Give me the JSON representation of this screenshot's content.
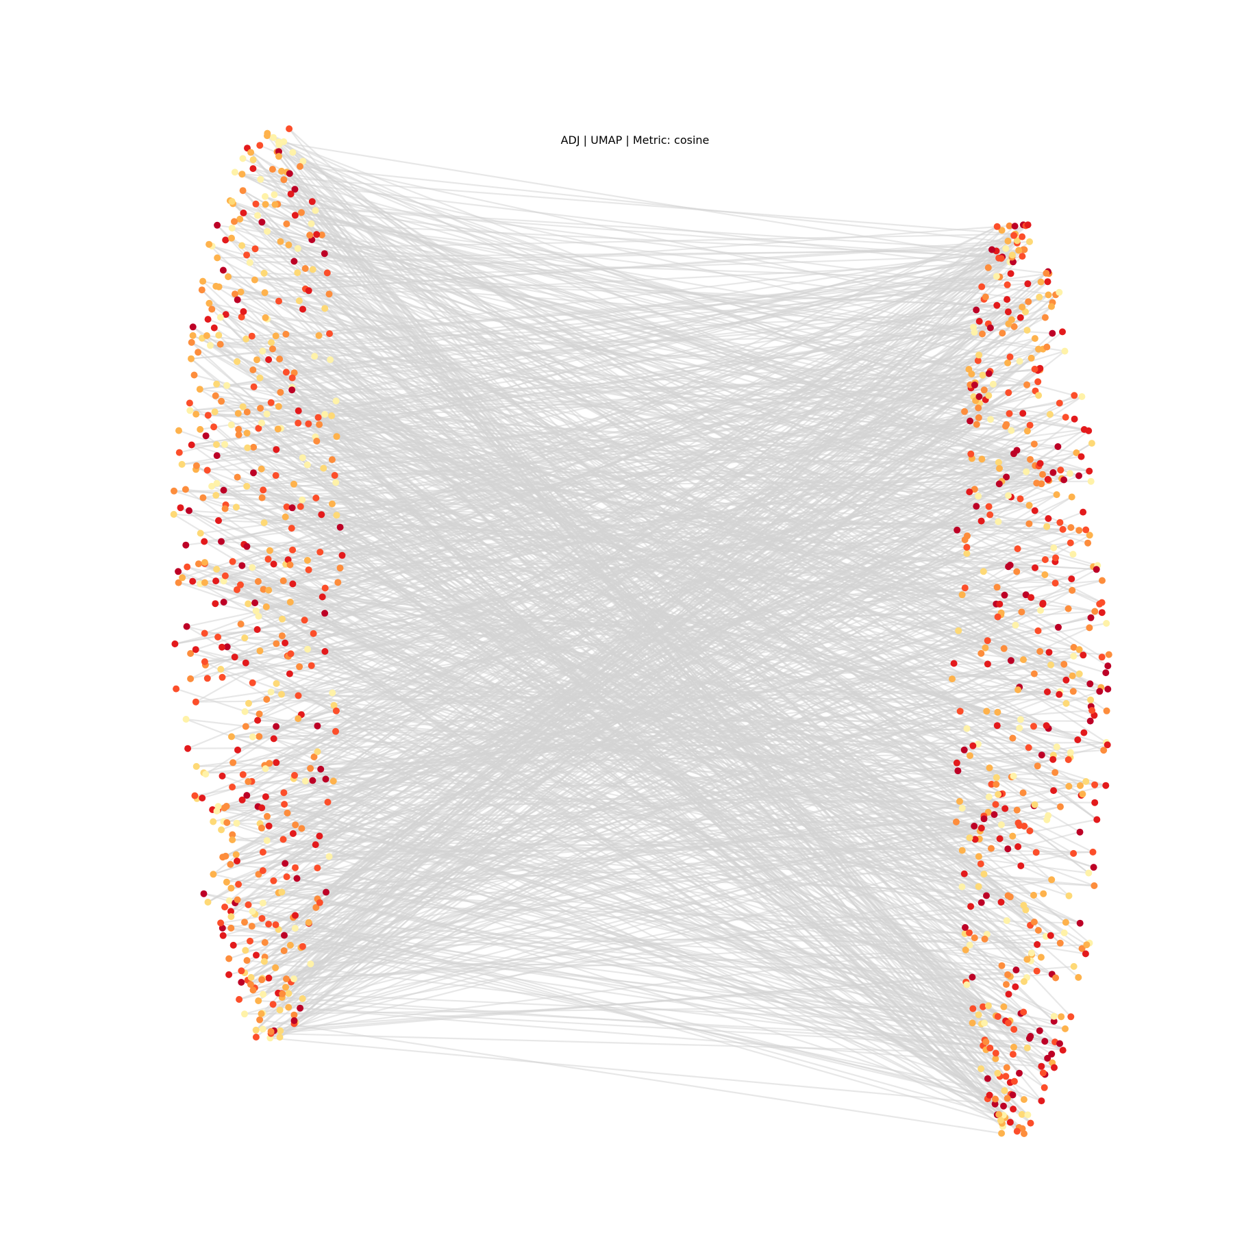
{
  "chart_data": {
    "type": "scatter",
    "title": "ADJ | UMAP | Metric: cosine",
    "axes_visible": false,
    "grid": false,
    "legend": "none",
    "edge_color": "#d3d3d3",
    "colormap": "YlOrRd",
    "colormap_stops": [
      "#fff2a8",
      "#fed976",
      "#feb24c",
      "#fd8d3c",
      "#fc4e2a",
      "#e31a1c",
      "#bd0026"
    ],
    "clusters": [
      {
        "name": "",
        "center_x": 4.0,
        "side": "left",
        "x_range": [
          2.4,
          4.9
        ],
        "y_range": [
          -1.4,
          10.8
        ],
        "node_count": 520
      },
      {
        "name": "",
        "center_x": 14.8,
        "side": "right",
        "x_range": [
          13.3,
          15.6
        ],
        "y_range": [
          -2.7,
          9.5
        ],
        "node_count": 520
      }
    ],
    "xlim": [
      0,
      18
    ],
    "ylim": [
      -4,
      12.5
    ]
  }
}
